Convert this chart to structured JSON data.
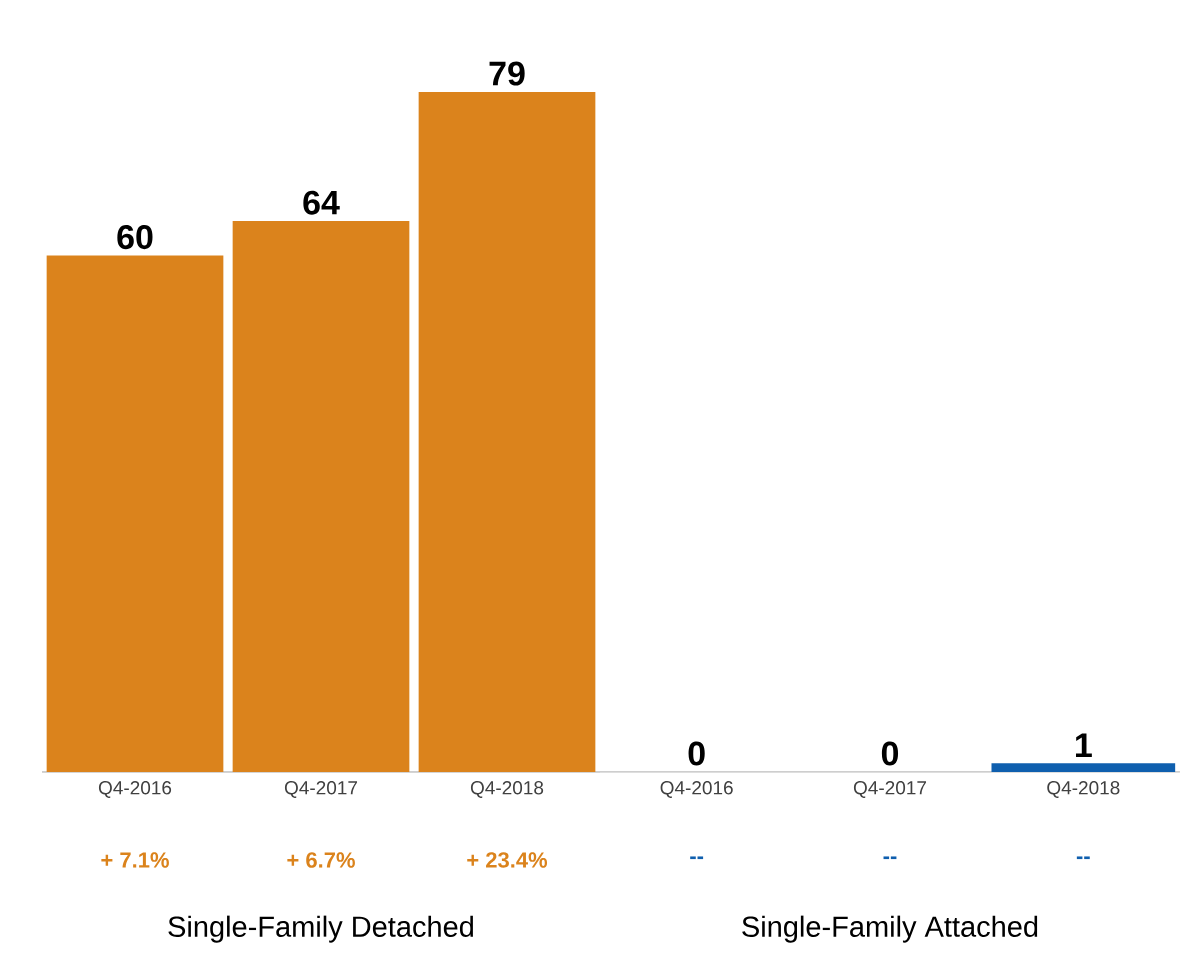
{
  "chart_data": [
    {
      "type": "bar",
      "xlabel": "Single-Family Detached",
      "categories": [
        "Q4-2016",
        "Q4-2017",
        "Q4-2018"
      ],
      "values": [
        60,
        64,
        79
      ],
      "color": "#db831c",
      "data_labels": true,
      "tick_labels": "x",
      "annotations": [
        "+ 7.1%",
        "+ 6.7%",
        "+ 23.4%"
      ]
    },
    {
      "type": "bar",
      "xlabel": "Single-Family Attached",
      "categories": [
        "Q4-2016",
        "Q4-2017",
        "Q4-2018"
      ],
      "values": [
        0,
        0,
        1
      ],
      "color": "#0f5fae",
      "data_labels": true,
      "tick_labels": "x",
      "annotations": [
        "--",
        "--",
        "--"
      ]
    }
  ]
}
